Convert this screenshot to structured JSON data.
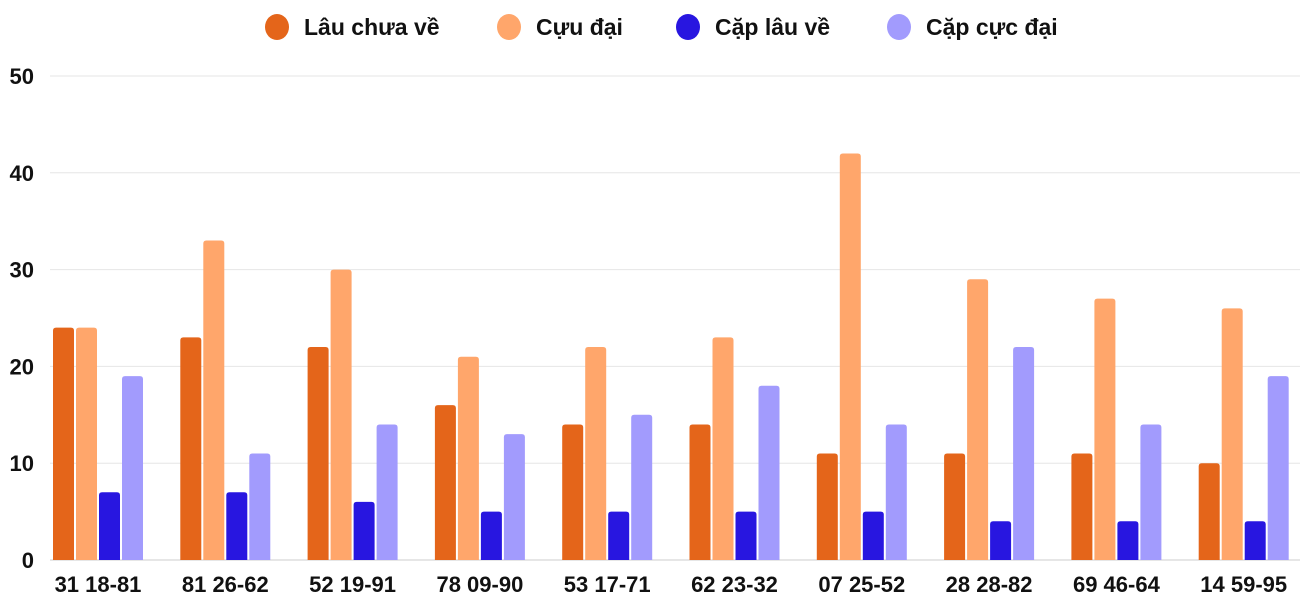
{
  "chart_data": {
    "type": "bar",
    "title": "",
    "xlabel": "",
    "ylabel": "",
    "ylim": [
      0,
      50
    ],
    "yticks": [
      0,
      10,
      20,
      30,
      40,
      50
    ],
    "grid": true,
    "legend_position": "top-center",
    "categories": [
      "31 18-81",
      "81 26-62",
      "52 19-91",
      "78 09-90",
      "53 17-71",
      "62 23-32",
      "07 25-52",
      "28 28-82",
      "69 46-64",
      "14 59-95"
    ],
    "series": [
      {
        "name": "Lâu chưa về",
        "color": "#E4651A",
        "values": [
          24,
          23,
          22,
          16,
          14,
          14,
          11,
          11,
          11,
          10
        ]
      },
      {
        "name": "Cựu đại",
        "color": "#FFA66B",
        "values": [
          24,
          33,
          30,
          21,
          22,
          23,
          42,
          29,
          27,
          26
        ]
      },
      {
        "name": "Cặp lâu về",
        "color": "#2816E0",
        "values": [
          7,
          7,
          6,
          5,
          5,
          5,
          5,
          4,
          4,
          4
        ]
      },
      {
        "name": "Cặp cực đại",
        "color": "#A29BFD",
        "values": [
          19,
          11,
          14,
          13,
          15,
          18,
          14,
          22,
          14,
          19
        ]
      }
    ]
  }
}
